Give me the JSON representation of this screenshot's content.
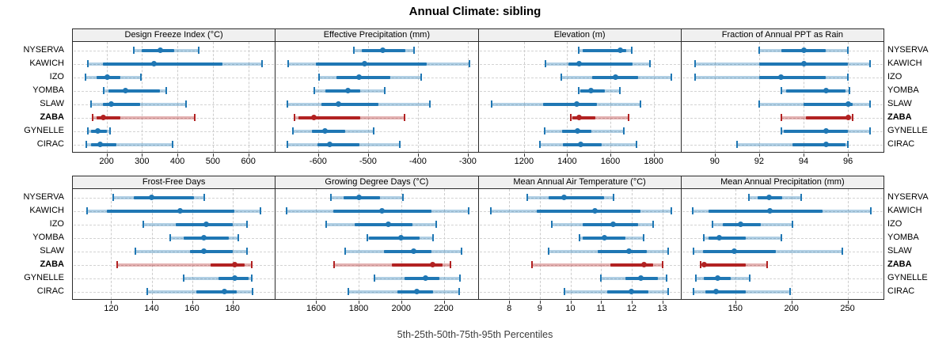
{
  "title": "Annual Climate: sibling",
  "caption": "5th-25th-50th-75th-95th Percentiles",
  "sites": [
    "NYSERVA",
    "KAWICH",
    "IZO",
    "YOMBA",
    "SLAW",
    "ZABA",
    "GYNELLE",
    "CIRAC"
  ],
  "highlight_site": "ZABA",
  "colors": {
    "series": "#1f77b4",
    "highlight": "#b22222",
    "strip_bg": "#f0f0f0",
    "panel_border": "#2b2b2b",
    "gridline": "#cdcdcd"
  },
  "chart_data": {
    "type": "dotplot-percentile-trellis",
    "percentiles": [
      5,
      25,
      50,
      75,
      95
    ],
    "layout": "2 rows x 4 columns",
    "panels": [
      {
        "title": "Design Freeze Index (°C)",
        "xlim": [
          105,
          675
        ],
        "ticks": [
          200,
          300,
          400,
          500,
          600
        ],
        "values": {
          "NYSERVA": [
            276,
            299,
            351,
            390,
            461
          ],
          "KAWICH": [
            148,
            190,
            333,
            528,
            639
          ],
          "IZO": [
            140,
            173,
            202,
            240,
            296
          ],
          "YOMBA": [
            192,
            206,
            253,
            350,
            368
          ],
          "SLAW": [
            157,
            190,
            213,
            294,
            424
          ],
          "ZABA": [
            161,
            172,
            190,
            239,
            448
          ],
          "GYNELLE": [
            148,
            157,
            176,
            202,
            210
          ],
          "CIRAC": [
            142,
            157,
            182,
            228,
            387
          ]
        }
      },
      {
        "title": "Effective Precipitation (mm)",
        "xlim": [
          -685,
          -280
        ],
        "ticks": [
          -600,
          -500,
          -400,
          -300
        ],
        "values": {
          "NYSERVA": [
            -528,
            -512,
            -471,
            -425,
            -407
          ],
          "KAWICH": [
            -660,
            -604,
            -507,
            -383,
            -296
          ],
          "IZO": [
            -598,
            -564,
            -518,
            -455,
            -393
          ],
          "YOMBA": [
            -607,
            -585,
            -540,
            -515,
            -467
          ],
          "SLAW": [
            -661,
            -594,
            -559,
            -479,
            -376
          ],
          "ZABA": [
            -647,
            -640,
            -608,
            -515,
            -427
          ],
          "GYNELLE": [
            -650,
            -612,
            -586,
            -545,
            -488
          ],
          "CIRAC": [
            -661,
            -602,
            -576,
            -517,
            -436
          ]
        }
      },
      {
        "title": "Elevation (m)",
        "xlim": [
          990,
          1925
        ],
        "ticks": [
          1200,
          1400,
          1600,
          1800
        ],
        "values": {
          "NYSERVA": [
            1453,
            1472,
            1647,
            1672,
            1700
          ],
          "KAWICH": [
            1301,
            1406,
            1456,
            1702,
            1783
          ],
          "IZO": [
            1373,
            1517,
            1625,
            1727,
            1881
          ],
          "YOMBA": [
            1453,
            1462,
            1509,
            1573,
            1644
          ],
          "SLAW": [
            1051,
            1289,
            1446,
            1536,
            1739
          ],
          "ZABA": [
            1418,
            1425,
            1456,
            1530,
            1684
          ],
          "GYNELLE": [
            1297,
            1375,
            1449,
            1511,
            1663
          ],
          "CIRAC": [
            1273,
            1381,
            1462,
            1560,
            1721
          ]
        }
      },
      {
        "title": "Fraction of Annual PPT as Rain",
        "xlim": [
          88.5,
          97.6
        ],
        "ticks": [
          90,
          92,
          94,
          96
        ],
        "values": {
          "NYSERVA": [
            92,
            93,
            94,
            95,
            96
          ],
          "KAWICH": [
            89.1,
            92,
            94,
            96,
            97
          ],
          "IZO": [
            89.1,
            92,
            93,
            95,
            96
          ],
          "YOMBA": [
            93,
            93.2,
            95,
            95.9,
            96.05
          ],
          "SLAW": [
            92,
            94,
            96,
            96.2,
            97
          ],
          "ZABA": [
            93,
            94.1,
            96,
            96.1,
            96.2
          ],
          "GYNELLE": [
            93,
            93.1,
            95,
            96,
            97
          ],
          "CIRAC": [
            91,
            93.5,
            95,
            95.9,
            96
          ]
        }
      },
      {
        "title": "Frost-Free Days",
        "xlim": [
          101,
          201
        ],
        "ticks": [
          120,
          140,
          160,
          180
        ],
        "values": {
          "NYSERVA": [
            121,
            131,
            140,
            161,
            166
          ],
          "KAWICH": [
            108,
            118,
            154,
            181,
            194
          ],
          "IZO": [
            136,
            152,
            167,
            180,
            187
          ],
          "YOMBA": [
            149,
            156,
            166,
            178,
            183
          ],
          "SLAW": [
            132,
            159,
            166,
            180,
            187
          ],
          "ZABA": [
            123,
            169,
            181,
            186,
            189.5
          ],
          "GYNELLE": [
            156,
            173,
            181,
            188,
            189.5
          ],
          "CIRAC": [
            138,
            162,
            176,
            182,
            190
          ]
        }
      },
      {
        "title": "Growing Degree Days (°C)",
        "xlim": [
          1410,
          2360
        ],
        "ticks": [
          1600,
          1800,
          2000,
          2200
        ],
        "values": {
          "NYSERVA": [
            1670,
            1730,
            1800,
            1901,
            2009
          ],
          "KAWICH": [
            1463,
            1679,
            1911,
            2142,
            2317
          ],
          "IZO": [
            1647,
            1780,
            1939,
            2053,
            2165
          ],
          "YOMBA": [
            1840,
            1850,
            2000,
            2085,
            2149
          ],
          "SLAW": [
            1738,
            1920,
            2060,
            2142,
            2282
          ],
          "ZABA": [
            1685,
            1958,
            2149,
            2193,
            2231
          ],
          "GYNELLE": [
            1873,
            2015,
            2113,
            2180,
            2276
          ],
          "CIRAC": [
            1751,
            1984,
            2075,
            2149,
            2272
          ]
        }
      },
      {
        "title": "Mean Annual Air Temperature (°C)",
        "xlim": [
          7.0,
          13.6
        ],
        "ticks": [
          8,
          9,
          10,
          11,
          12,
          13
        ],
        "values": {
          "NYSERVA": [
            8.6,
            9.3,
            9.8,
            11.1,
            11.4
          ],
          "KAWICH": [
            7.4,
            8.9,
            10.8,
            12.3,
            13.3
          ],
          "IZO": [
            9.4,
            10.4,
            11.4,
            12.2,
            12.7
          ],
          "YOMBA": [
            10.3,
            10.4,
            11.1,
            11.8,
            12.4
          ],
          "SLAW": [
            9.3,
            10.9,
            11.9,
            12.5,
            13.2
          ],
          "ZABA": [
            8.75,
            11.3,
            12.4,
            12.7,
            13.0
          ],
          "GYNELLE": [
            11.0,
            11.8,
            12.3,
            12.85,
            13.15
          ],
          "CIRAC": [
            9.8,
            11.2,
            12.0,
            12.55,
            13.2
          ]
        }
      },
      {
        "title": "Mean Annual Precipitation (mm)",
        "xlim": [
          102,
          282
        ],
        "ticks": [
          150,
          200,
          250
        ],
        "values": {
          "NYSERVA": [
            162,
            170,
            180,
            192,
            209
          ],
          "KAWICH": [
            112,
            126,
            181,
            228,
            271
          ],
          "IZO": [
            130,
            139,
            155,
            173,
            201
          ],
          "YOMBA": [
            122,
            126,
            136,
            159,
            191
          ],
          "SLAW": [
            113,
            121,
            149,
            186,
            245
          ],
          "ZABA": [
            119,
            121,
            122,
            159,
            178
          ],
          "GYNELLE": [
            115,
            122,
            134,
            146,
            163
          ],
          "CIRAC": [
            113,
            123,
            133,
            159,
            199
          ]
        }
      }
    ]
  }
}
